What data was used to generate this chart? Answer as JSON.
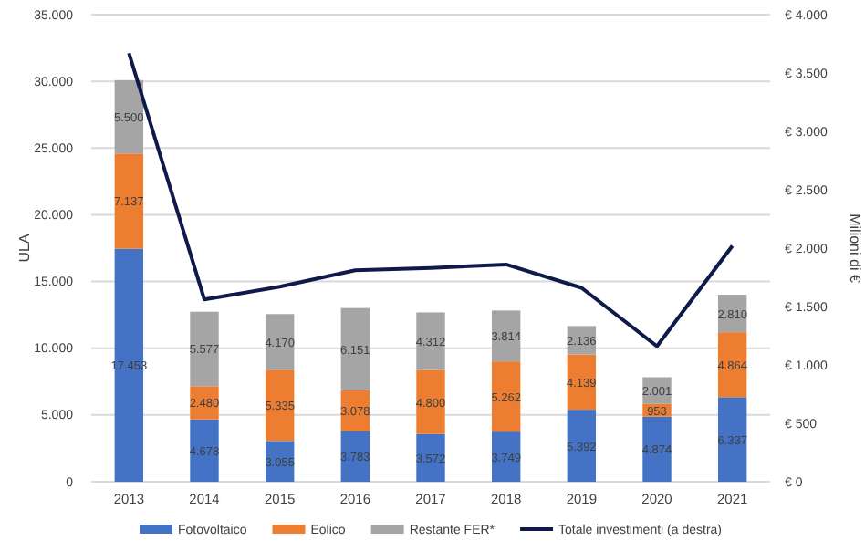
{
  "chart_data": {
    "type": "bar",
    "stacked": true,
    "categories": [
      "2013",
      "2014",
      "2015",
      "2016",
      "2017",
      "2018",
      "2019",
      "2020",
      "2021"
    ],
    "ylabel": "ULA",
    "y2label": "Milioni di €",
    "series": [
      {
        "name": "Fotovoltaico",
        "color": "#4472c4",
        "values": [
          17453,
          4678,
          3055,
          3783,
          3572,
          3749,
          5392,
          4874,
          6337
        ],
        "value_labels": [
          "17.453",
          "4.678",
          "3.055",
          "3.783",
          "3.572",
          "3.749",
          "5.392",
          "4.874",
          "6.337"
        ]
      },
      {
        "name": "Eolico",
        "color": "#ed7d31",
        "values": [
          7137,
          2480,
          5335,
          3078,
          4800,
          5262,
          4139,
          953,
          4864
        ],
        "value_labels": [
          "7.137",
          "2.480",
          "5.335",
          "3.078",
          "4.800",
          "5.262",
          "4.139",
          "953",
          "4.864"
        ]
      },
      {
        "name": "Restante FER*",
        "color": "#a5a5a5",
        "values": [
          5500,
          5577,
          4170,
          6151,
          4312,
          3814,
          2136,
          2001,
          2810
        ],
        "value_labels": [
          "5.500",
          "5.577",
          "4.170",
          "6.151",
          "4.312",
          "3.814",
          "2.136",
          "2.001",
          "2.810"
        ]
      },
      {
        "name": "Totale investimenti (a destra)",
        "type": "line",
        "axis": "y2",
        "color": "#0e1a4a",
        "values": [
          3670,
          1560,
          1670,
          1810,
          1830,
          1860,
          1660,
          1160,
          2020
        ]
      }
    ],
    "ylim": [
      0,
      35000
    ],
    "yticks": [
      {
        "value": 0,
        "label": "0"
      },
      {
        "value": 5000,
        "label": "5.000"
      },
      {
        "value": 10000,
        "label": "10.000"
      },
      {
        "value": 15000,
        "label": "15.000"
      },
      {
        "value": 20000,
        "label": "20.000"
      },
      {
        "value": 25000,
        "label": "25.000"
      },
      {
        "value": 30000,
        "label": "30.000"
      },
      {
        "value": 35000,
        "label": "35.000"
      }
    ],
    "y2lim": [
      0,
      4000
    ],
    "y2ticks": [
      {
        "value": 0,
        "label": "€ 0"
      },
      {
        "value": 500,
        "label": "€ 500"
      },
      {
        "value": 1000,
        "label": "€ 1.000"
      },
      {
        "value": 1500,
        "label": "€ 1.500"
      },
      {
        "value": 2000,
        "label": "€ 2.000"
      },
      {
        "value": 2500,
        "label": "€ 2.500"
      },
      {
        "value": 3000,
        "label": "€ 3.000"
      },
      {
        "value": 3500,
        "label": "€ 3.500"
      },
      {
        "value": 4000,
        "label": "€ 4.000"
      }
    ],
    "grid": "y",
    "legend": "bottom"
  }
}
